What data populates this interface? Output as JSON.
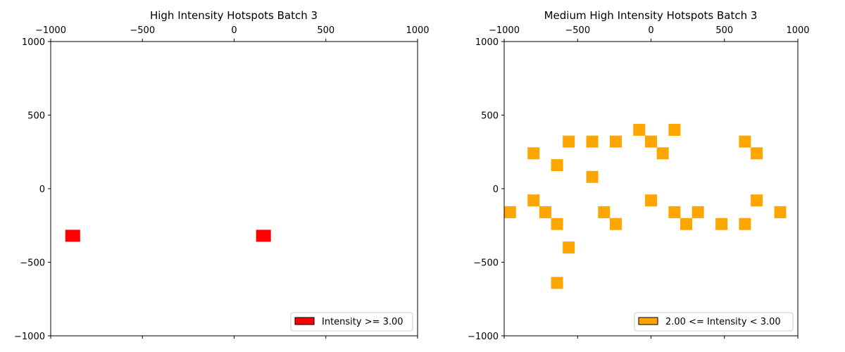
{
  "chart_data": [
    {
      "type": "scatter",
      "marker": "square",
      "title": "High Intensity Hotspots Batch 3",
      "xlabel": "",
      "ylabel": "",
      "xlim": [
        -1000,
        1000
      ],
      "ylim": [
        -1000,
        1000
      ],
      "xticks": [
        -1000,
        -500,
        0,
        500,
        1000
      ],
      "yticks": [
        -1000,
        -500,
        0,
        500,
        1000
      ],
      "xtick_labels": [
        "−1000",
        "−500",
        "0",
        "500",
        "1000"
      ],
      "ytick_labels": [
        "−1000",
        "−500",
        "0",
        "500",
        "1000"
      ],
      "x_axis_position": "top",
      "grid": false,
      "legend_placement": "lower-right",
      "color": "#ff0000",
      "legend_label": "Intensity >= 3.00",
      "points": [
        {
          "x": -880,
          "y": -320
        },
        {
          "x": 160,
          "y": -320
        }
      ]
    },
    {
      "type": "scatter",
      "marker": "square",
      "title": "Medium High Intensity Hotspots Batch 3",
      "xlabel": "",
      "ylabel": "",
      "xlim": [
        -1000,
        1000
      ],
      "ylim": [
        -1000,
        1000
      ],
      "xticks": [
        -1000,
        -500,
        0,
        500,
        1000
      ],
      "yticks": [
        -1000,
        -500,
        0,
        500,
        1000
      ],
      "xtick_labels": [
        "−1000",
        "−500",
        "0",
        "500",
        "1000"
      ],
      "ytick_labels": [
        "−1000",
        "−500",
        "0",
        "500",
        "1000"
      ],
      "x_axis_position": "top",
      "grid": false,
      "legend_placement": "lower-right",
      "color": "#ffa500",
      "legend_label": "2.00 <= Intensity < 3.00",
      "points": [
        {
          "x": -960,
          "y": -160
        },
        {
          "x": -800,
          "y": 240
        },
        {
          "x": -800,
          "y": -80
        },
        {
          "x": -720,
          "y": -160
        },
        {
          "x": -640,
          "y": 160
        },
        {
          "x": -640,
          "y": -240
        },
        {
          "x": -640,
          "y": -640
        },
        {
          "x": -560,
          "y": 320
        },
        {
          "x": -560,
          "y": -400
        },
        {
          "x": -400,
          "y": 320
        },
        {
          "x": -400,
          "y": 80
        },
        {
          "x": -320,
          "y": -160
        },
        {
          "x": -240,
          "y": 320
        },
        {
          "x": -240,
          "y": -240
        },
        {
          "x": -80,
          "y": 400
        },
        {
          "x": 0,
          "y": 320
        },
        {
          "x": 0,
          "y": -80
        },
        {
          "x": 80,
          "y": 240
        },
        {
          "x": 160,
          "y": 400
        },
        {
          "x": 160,
          "y": -160
        },
        {
          "x": 240,
          "y": -240
        },
        {
          "x": 320,
          "y": -160
        },
        {
          "x": 480,
          "y": -240
        },
        {
          "x": 640,
          "y": 320
        },
        {
          "x": 640,
          "y": -240
        },
        {
          "x": 720,
          "y": 240
        },
        {
          "x": 720,
          "y": -80
        },
        {
          "x": 880,
          "y": -160
        }
      ]
    }
  ]
}
